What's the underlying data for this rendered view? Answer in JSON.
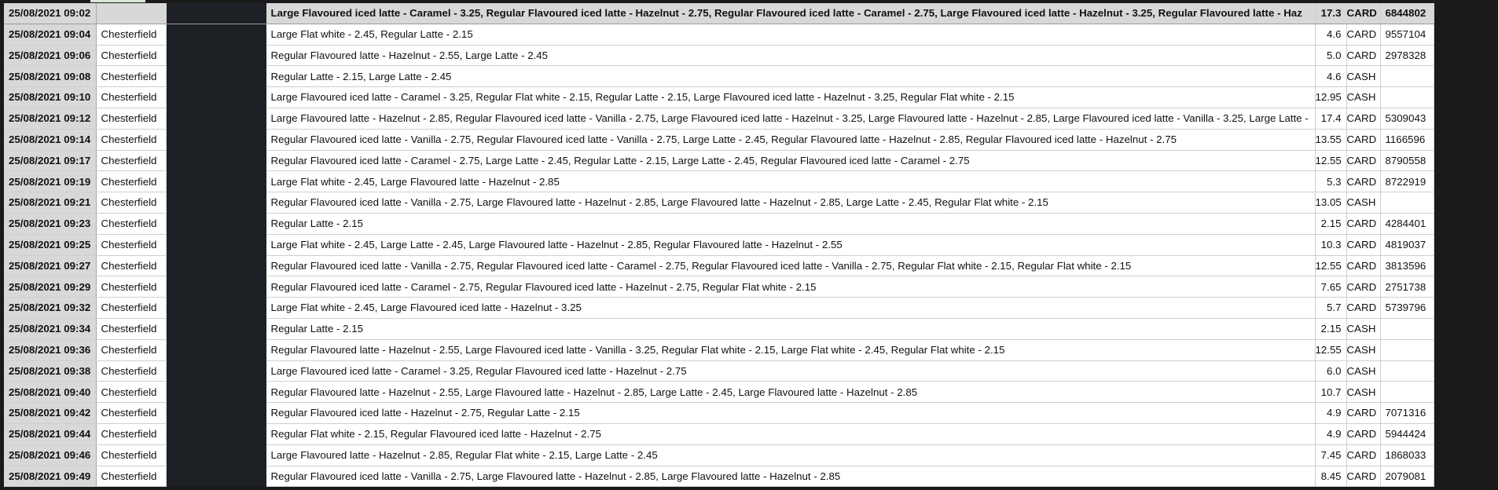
{
  "rows": [
    {
      "datetime": "25/08/2021 09:02",
      "location": "",
      "items": "Large Flavoured iced latte - Caramel - 3.25, Regular Flavoured iced latte - Hazelnut - 2.75, Regular Flavoured iced latte - Caramel - 2.75, Large Flavoured iced latte - Hazelnut - 3.25, Regular Flavoured latte - Haz",
      "total": "17.3",
      "payment": "CARD",
      "card_number": "6844802",
      "selected": true
    },
    {
      "datetime": "25/08/2021 09:04",
      "location": "Chesterfield",
      "items": "Large Flat white - 2.45, Regular Latte - 2.15",
      "total": "4.6",
      "payment": "CARD",
      "card_number": "9557104"
    },
    {
      "datetime": "25/08/2021 09:06",
      "location": "Chesterfield",
      "items": "Regular Flavoured latte - Hazelnut - 2.55, Large Latte - 2.45",
      "total": "5.0",
      "payment": "CARD",
      "card_number": "2978328"
    },
    {
      "datetime": "25/08/2021 09:08",
      "location": "Chesterfield",
      "items": "Regular Latte - 2.15, Large Latte - 2.45",
      "total": "4.6",
      "payment": "CASH",
      "card_number": ""
    },
    {
      "datetime": "25/08/2021 09:10",
      "location": "Chesterfield",
      "items": "Large Flavoured iced latte - Caramel - 3.25, Regular Flat white - 2.15, Regular Latte - 2.15, Large Flavoured iced latte - Hazelnut - 3.25, Regular Flat white - 2.15",
      "total": "12.95",
      "payment": "CASH",
      "card_number": ""
    },
    {
      "datetime": "25/08/2021 09:12",
      "location": "Chesterfield",
      "items": "Large Flavoured latte - Hazelnut - 2.85, Regular Flavoured iced latte - Vanilla - 2.75, Large Flavoured iced latte - Hazelnut - 3.25, Large Flavoured latte - Hazelnut - 2.85, Large Flavoured iced latte - Vanilla - 3.25, Large Latte -",
      "total": "17.4",
      "payment": "CARD",
      "card_number": "5309043"
    },
    {
      "datetime": "25/08/2021 09:14",
      "location": "Chesterfield",
      "items": "Regular Flavoured iced latte - Vanilla - 2.75, Regular Flavoured iced latte - Vanilla - 2.75, Large Latte - 2.45, Regular Flavoured latte - Hazelnut - 2.85, Regular Flavoured iced latte - Hazelnut - 2.75",
      "total": "13.55",
      "payment": "CARD",
      "card_number": "1166596"
    },
    {
      "datetime": "25/08/2021 09:17",
      "location": "Chesterfield",
      "items": "Regular Flavoured iced latte - Caramel - 2.75, Large Latte - 2.45, Regular Latte - 2.15, Large Latte - 2.45, Regular Flavoured iced latte - Caramel - 2.75",
      "total": "12.55",
      "payment": "CARD",
      "card_number": "8790558"
    },
    {
      "datetime": "25/08/2021 09:19",
      "location": "Chesterfield",
      "items": "Large Flat white - 2.45, Large Flavoured latte - Hazelnut - 2.85",
      "total": "5.3",
      "payment": "CARD",
      "card_number": "8722919"
    },
    {
      "datetime": "25/08/2021 09:21",
      "location": "Chesterfield",
      "items": "Regular Flavoured iced latte - Vanilla - 2.75, Large Flavoured latte - Hazelnut - 2.85, Large Flavoured latte - Hazelnut - 2.85, Large Latte - 2.45, Regular Flat white - 2.15",
      "total": "13.05",
      "payment": "CASH",
      "card_number": ""
    },
    {
      "datetime": "25/08/2021 09:23",
      "location": "Chesterfield",
      "items": "Regular Latte - 2.15",
      "total": "2.15",
      "payment": "CARD",
      "card_number": "4284401"
    },
    {
      "datetime": "25/08/2021 09:25",
      "location": "Chesterfield",
      "items": "Large Flat white - 2.45, Large Latte - 2.45, Large Flavoured latte - Hazelnut - 2.85, Regular Flavoured latte - Hazelnut - 2.55",
      "total": "10.3",
      "payment": "CARD",
      "card_number": "4819037"
    },
    {
      "datetime": "25/08/2021 09:27",
      "location": "Chesterfield",
      "items": "Regular Flavoured iced latte - Vanilla - 2.75, Regular Flavoured iced latte - Caramel - 2.75, Regular Flavoured iced latte - Vanilla - 2.75, Regular Flat white - 2.15, Regular Flat white - 2.15",
      "total": "12.55",
      "payment": "CARD",
      "card_number": "3813596"
    },
    {
      "datetime": "25/08/2021 09:29",
      "location": "Chesterfield",
      "items": "Regular Flavoured iced latte - Caramel - 2.75, Regular Flavoured iced latte - Hazelnut - 2.75, Regular Flat white - 2.15",
      "total": "7.65",
      "payment": "CARD",
      "card_number": "2751738"
    },
    {
      "datetime": "25/08/2021 09:32",
      "location": "Chesterfield",
      "items": "Large Flat white - 2.45, Large Flavoured iced latte - Hazelnut - 3.25",
      "total": "5.7",
      "payment": "CARD",
      "card_number": "5739796"
    },
    {
      "datetime": "25/08/2021 09:34",
      "location": "Chesterfield",
      "items": "Regular Latte - 2.15",
      "total": "2.15",
      "payment": "CASH",
      "card_number": ""
    },
    {
      "datetime": "25/08/2021 09:36",
      "location": "Chesterfield",
      "items": "Regular Flavoured latte - Hazelnut - 2.55, Large Flavoured iced latte - Vanilla - 3.25, Regular Flat white - 2.15, Large Flat white - 2.45, Regular Flat white - 2.15",
      "total": "12.55",
      "payment": "CASH",
      "card_number": ""
    },
    {
      "datetime": "25/08/2021 09:38",
      "location": "Chesterfield",
      "items": "Large Flavoured iced latte - Caramel - 3.25, Regular Flavoured iced latte - Hazelnut - 2.75",
      "total": "6.0",
      "payment": "CASH",
      "card_number": ""
    },
    {
      "datetime": "25/08/2021 09:40",
      "location": "Chesterfield",
      "items": "Regular Flavoured latte - Hazelnut - 2.55, Large Flavoured latte - Hazelnut - 2.85, Large Latte - 2.45, Large Flavoured latte - Hazelnut - 2.85",
      "total": "10.7",
      "payment": "CASH",
      "card_number": ""
    },
    {
      "datetime": "25/08/2021 09:42",
      "location": "Chesterfield",
      "items": "Regular Flavoured iced latte - Hazelnut - 2.75, Regular Latte - 2.15",
      "total": "4.9",
      "payment": "CARD",
      "card_number": "7071316"
    },
    {
      "datetime": "25/08/2021 09:44",
      "location": "Chesterfield",
      "items": "Regular Flat white - 2.15, Regular Flavoured iced latte - Hazelnut - 2.75",
      "total": "4.9",
      "payment": "CARD",
      "card_number": "5944424"
    },
    {
      "datetime": "25/08/2021 09:46",
      "location": "Chesterfield",
      "items": "Large Flavoured latte - Hazelnut - 2.85, Regular Flat white - 2.15, Large Latte - 2.45",
      "total": "7.45",
      "payment": "CARD",
      "card_number": "1868033"
    },
    {
      "datetime": "25/08/2021 09:49",
      "location": "Chesterfield",
      "items": "Regular Flavoured iced latte - Vanilla - 2.75, Large Flavoured latte - Hazelnut - 2.85, Large Flavoured latte - Hazelnut - 2.85",
      "total": "8.45",
      "payment": "CARD",
      "card_number": "2079081"
    }
  ]
}
